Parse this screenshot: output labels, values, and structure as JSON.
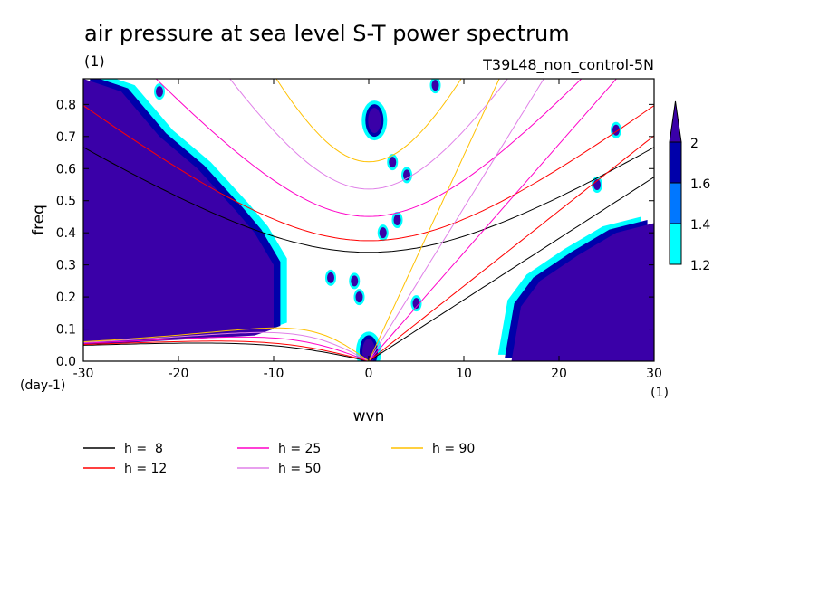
{
  "chart_data": {
    "type": "heatmap",
    "title": "air pressure at sea level S-T power spectrum",
    "units": "(1)",
    "experiment": "T39L48_non_control-5N",
    "xlabel": "wvn",
    "ylabel": "freq",
    "x_units": "(1)",
    "y_units": "(day-1)",
    "xlim": [
      -30,
      30
    ],
    "ylim": [
      0,
      0.88
    ],
    "x_ticks": [
      -30,
      -20,
      -10,
      0,
      10,
      20,
      30
    ],
    "y_ticks": [
      0.0,
      0.1,
      0.2,
      0.3,
      0.4,
      0.5,
      0.6,
      0.7,
      0.8
    ],
    "x_tick_labels": [
      "-30",
      "-20",
      "-10",
      "0",
      "10",
      "20",
      "30"
    ],
    "y_tick_labels": [
      "0.0",
      "0.1",
      "0.2",
      "0.3",
      "0.4",
      "0.5",
      "0.6",
      "0.7",
      "0.8"
    ],
    "colorbar": {
      "levels": [
        "1.2",
        "1.4",
        "1.6",
        "2"
      ],
      "colors": [
        "#00ffff",
        "#0077ff",
        "#0000aa",
        "#3a00a8"
      ]
    },
    "field_regions": [
      {
        "name": "left-high-power",
        "level": 2,
        "approx_boundary": [
          [
            -30,
            0.88
          ],
          [
            -26,
            0.84
          ],
          [
            -22,
            0.7
          ],
          [
            -18,
            0.6
          ],
          [
            -14,
            0.47
          ],
          [
            -12,
            0.4
          ],
          [
            -10,
            0.3
          ],
          [
            -10,
            0.1
          ],
          [
            -12,
            0.08
          ],
          [
            -30,
            0.05
          ]
        ]
      },
      {
        "name": "right-high-power",
        "level": 2,
        "approx_boundary": [
          [
            30,
            0.43
          ],
          [
            26,
            0.4
          ],
          [
            22,
            0.33
          ],
          [
            18,
            0.25
          ],
          [
            16,
            0.17
          ],
          [
            15,
            0.0
          ],
          [
            30,
            0.0
          ]
        ]
      },
      {
        "name": "center-blob-0.75",
        "level": 2,
        "approx_center": [
          0.6,
          0.75
        ]
      },
      {
        "name": "origin-blob",
        "level": 2,
        "approx_center": [
          0,
          0.03
        ]
      }
    ],
    "series": [
      {
        "name": "h =  8",
        "color": "#000000",
        "equivalent_depth_m": 8
      },
      {
        "name": "h = 12",
        "color": "#ff0000",
        "equivalent_depth_m": 12
      },
      {
        "name": "h = 25",
        "color": "#ff00c8",
        "equivalent_depth_m": 25
      },
      {
        "name": "h = 50",
        "color": "#e080e8",
        "equivalent_depth_m": 50
      },
      {
        "name": "h = 90",
        "color": "#ffc000",
        "equivalent_depth_m": 90
      }
    ]
  }
}
